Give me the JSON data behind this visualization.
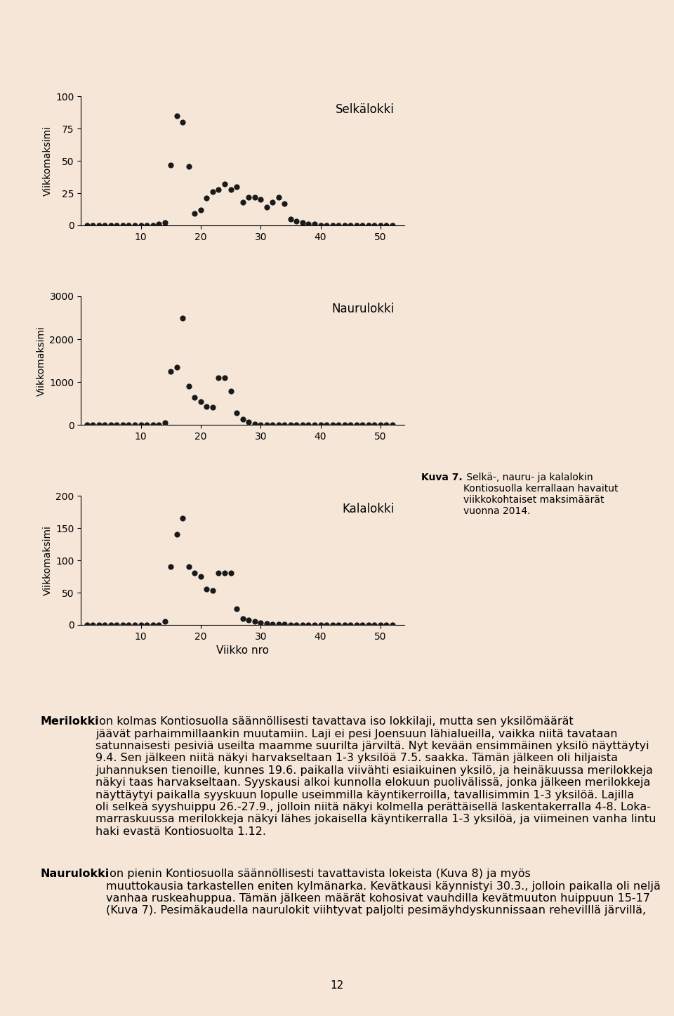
{
  "background_color": "#f5e6d8",
  "plot_bg_color": "#f5e6d8",
  "dot_color": "#1a1a1a",
  "dot_size": 35,
  "selkalokki": {
    "label": "Selkälokki",
    "ylabel": "Viikkomaksimi",
    "ylim": [
      0,
      100
    ],
    "yticks": [
      0,
      25,
      50,
      75,
      100
    ],
    "weeks": [
      1,
      2,
      3,
      4,
      5,
      6,
      7,
      8,
      9,
      10,
      11,
      12,
      13,
      14,
      15,
      16,
      17,
      18,
      19,
      20,
      21,
      22,
      23,
      24,
      25,
      26,
      27,
      28,
      29,
      30,
      31,
      32,
      33,
      34,
      35,
      36,
      37,
      38,
      39,
      40,
      41,
      42,
      43,
      44,
      45,
      46,
      47,
      48,
      49,
      50,
      51,
      52
    ],
    "values": [
      0,
      0,
      0,
      0,
      0,
      0,
      0,
      0,
      0,
      0,
      0,
      0,
      1,
      2,
      47,
      85,
      80,
      46,
      9,
      12,
      21,
      26,
      28,
      32,
      28,
      30,
      18,
      22,
      22,
      20,
      14,
      18,
      22,
      17,
      5,
      3,
      2,
      1,
      1,
      0,
      0,
      0,
      0,
      0,
      0,
      0,
      0,
      0,
      0,
      0,
      0,
      0
    ]
  },
  "naurulokki": {
    "label": "Naurulokki",
    "ylabel": "Viikkomaksimi",
    "ylim": [
      0,
      3000
    ],
    "yticks": [
      0,
      1000,
      2000,
      3000
    ],
    "weeks": [
      1,
      2,
      3,
      4,
      5,
      6,
      7,
      8,
      9,
      10,
      11,
      12,
      13,
      14,
      15,
      16,
      17,
      18,
      19,
      20,
      21,
      22,
      23,
      24,
      25,
      26,
      27,
      28,
      29,
      30,
      31,
      32,
      33,
      34,
      35,
      36,
      37,
      38,
      39,
      40,
      41,
      42,
      43,
      44,
      45,
      46,
      47,
      48,
      49,
      50,
      51,
      52
    ],
    "values": [
      0,
      0,
      0,
      0,
      0,
      0,
      0,
      0,
      0,
      0,
      0,
      0,
      0,
      50,
      1250,
      1350,
      2500,
      900,
      650,
      550,
      430,
      420,
      1100,
      1100,
      800,
      280,
      140,
      70,
      25,
      8,
      4,
      2,
      1,
      0,
      0,
      0,
      0,
      0,
      0,
      0,
      0,
      0,
      0,
      0,
      0,
      0,
      0,
      0,
      0,
      0,
      0,
      0
    ]
  },
  "kalalokki": {
    "label": "Kalalokki",
    "ylabel": "Viikkomaksimi",
    "ylim": [
      0,
      200
    ],
    "yticks": [
      0,
      50,
      100,
      150,
      200
    ],
    "weeks": [
      1,
      2,
      3,
      4,
      5,
      6,
      7,
      8,
      9,
      10,
      11,
      12,
      13,
      14,
      15,
      16,
      17,
      18,
      19,
      20,
      21,
      22,
      23,
      24,
      25,
      26,
      27,
      28,
      29,
      30,
      31,
      32,
      33,
      34,
      35,
      36,
      37,
      38,
      39,
      40,
      41,
      42,
      43,
      44,
      45,
      46,
      47,
      48,
      49,
      50,
      51,
      52
    ],
    "values": [
      0,
      0,
      0,
      0,
      0,
      0,
      0,
      0,
      0,
      0,
      0,
      0,
      0,
      5,
      90,
      140,
      165,
      90,
      80,
      75,
      55,
      53,
      80,
      80,
      80,
      25,
      10,
      8,
      5,
      3,
      2,
      1,
      1,
      1,
      0,
      0,
      0,
      0,
      0,
      0,
      0,
      0,
      0,
      0,
      0,
      0,
      0,
      0,
      0,
      0,
      0,
      0
    ]
  },
  "xlabel": "Viikko nro",
  "xlim": [
    0,
    54
  ],
  "xticks": [
    10,
    20,
    30,
    40,
    50
  ],
  "caption_bold": "Kuva 7.",
  "caption_rest": " Selkä-, nauru- ja kalalokin\nKontiosuolla kerrallaan havaitut\nviikkokohtaiset maksimäärät\nvuonna 2014.",
  "text_merilokki_bold": "Merilokki",
  "text_merilokki": " on kolmas Kontiosuolla säännöllisesti tavattava iso lokkilaji, mutta sen yksilömäärät\njäävät parhaimmillaankin muutamiin. Laji ei pesi Joensuun lähialueilla, vaikka niitä tavataan\nsatunnaisesti pesiviä useilta maamme suurilta järviltä. Nyt kevään ensimmäinen yksilö näyttäytyi\n9.4. Sen jälkeen niitä näkyi harvakseltaan 1-3 yksilöä 7.5. saakka. Tämän jälkeen oli hiljaista\njuhannuksen tienoille, kunnes 19.6. paikalla viivähti esiaikuinen yksilö, ja heinäkuussa merilokkeja\nnäkyi taas harvakseltaan. Syyskausi alkoi kunnolla elokuun puolivälissä, jonka jälkeen merilokkeja\nnäyttäytyi paikalla syyskuun lopulle useimmilla käyntikerroilla, tavallisimmin 1-3 yksilöä. Lajilla\noli selkeä syyshuippu 26.-27.9., jolloin niitä näkyi kolmella perättäisellä laskentakerralla 4-8. Loka-\nmarraskuussa merilokkeja näkyi lähes jokaisella käyntikerralla 1-3 yksilöä, ja viimeinen vanha lintu\nhaki evastä Kontiosuolta 1.12.",
  "text_naurulokki_bold": "Naurulokki",
  "text_naurulokki": " on pienin Kontiosuolla säännöllisesti tavattavista lokeista (Kuva 8) ja myös\nmuuttokausia tarkastellen eniten kylmänarka. Kevätkausi käynnistyi 30.3., jolloin paikalla oli neljä\nvanhaa ruskeahuppua. Tämän jälkeen määrät kohosivat vauhdilla kevätmuuton huippuun 15-17\n(Kuva 7). Pesimäkaudella naurulokit viihtyvat paljolti pesimäyhdyskunnissaan rehevilllä järvillä,",
  "page_number": "12",
  "font_size_axis": 10,
  "font_size_label": 12,
  "font_size_caption": 10,
  "font_size_body": 11.5
}
